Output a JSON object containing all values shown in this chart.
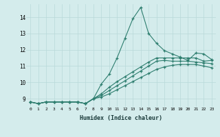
{
  "title": "",
  "xlabel": "Humidex (Indice chaleur)",
  "ylabel": "",
  "background_color": "#d4ecec",
  "grid_color": "#b8d8d8",
  "line_color": "#2d7d6e",
  "xlim": [
    -0.5,
    23.5
  ],
  "ylim": [
    8.5,
    14.8
  ],
  "yticks": [
    9,
    10,
    11,
    12,
    13,
    14
  ],
  "xticks": [
    0,
    1,
    2,
    3,
    4,
    5,
    6,
    7,
    8,
    9,
    10,
    11,
    12,
    13,
    14,
    15,
    16,
    17,
    18,
    19,
    20,
    21,
    22,
    23
  ],
  "series": [
    [
      8.8,
      8.7,
      8.8,
      8.8,
      8.8,
      8.8,
      8.8,
      8.7,
      9.0,
      9.9,
      10.5,
      11.5,
      12.7,
      13.9,
      14.6,
      13.0,
      12.4,
      11.95,
      11.75,
      11.55,
      11.35,
      11.8,
      11.75,
      11.4
    ],
    [
      8.8,
      8.7,
      8.8,
      8.8,
      8.8,
      8.8,
      8.8,
      8.7,
      9.0,
      9.3,
      9.7,
      10.05,
      10.35,
      10.65,
      10.95,
      11.25,
      11.5,
      11.5,
      11.5,
      11.5,
      11.5,
      11.5,
      11.3,
      11.35
    ],
    [
      8.8,
      8.7,
      8.8,
      8.8,
      8.8,
      8.8,
      8.8,
      8.7,
      9.0,
      9.2,
      9.5,
      9.8,
      10.1,
      10.4,
      10.7,
      11.0,
      11.3,
      11.35,
      11.3,
      11.3,
      11.3,
      11.25,
      11.2,
      11.15
    ],
    [
      8.8,
      8.7,
      8.8,
      8.8,
      8.8,
      8.8,
      8.8,
      8.7,
      9.0,
      9.1,
      9.3,
      9.55,
      9.8,
      10.05,
      10.3,
      10.55,
      10.8,
      10.95,
      11.05,
      11.1,
      11.1,
      11.1,
      11.0,
      10.9
    ]
  ]
}
